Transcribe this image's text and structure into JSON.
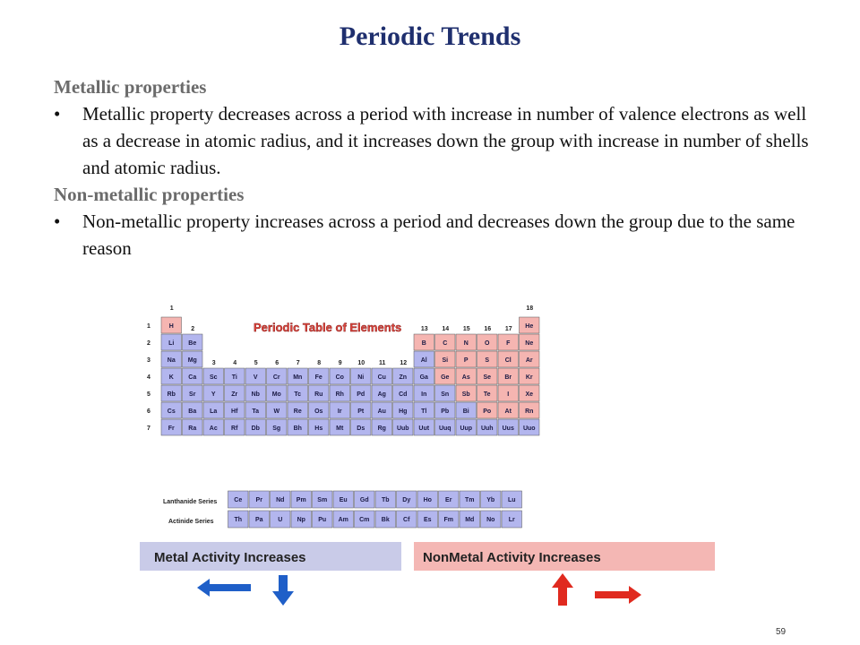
{
  "slide": {
    "title": "Periodic Trends",
    "page_number": "59"
  },
  "sections": [
    {
      "heading": "Metallic properties",
      "bullet": "Metallic property decreases across a period with increase in number of valence electrons as well as a decrease in atomic radius, and it increases down the group with increase in number of shells and atomic radius."
    },
    {
      "heading": "Non-metallic properties",
      "bullet": "Non-metallic property increases across a period and decreases down the group due to the same reason"
    }
  ],
  "table": {
    "title": "Periodic Table of Elements",
    "group_labels": [
      "1",
      "2",
      "3",
      "4",
      "5",
      "6",
      "7",
      "8",
      "9",
      "10",
      "11",
      "12",
      "13",
      "14",
      "15",
      "16",
      "17",
      "18"
    ],
    "period_labels": [
      "1",
      "2",
      "3",
      "4",
      "5",
      "6",
      "7"
    ],
    "lanthanide_label": "Lanthanide Series",
    "actinide_label": "Actinide Series",
    "metal_label": "Metal Activity Increases",
    "nonmetal_label": "NonMetal Activity Increases",
    "colors": {
      "metal": "#b3b6ee",
      "nonmetal": "#f5b5b1",
      "metal_banner": "#c9cbe8",
      "nonmetal_banner": "#f4b7b4",
      "metal_arrow": "#1f5fc8",
      "nonmetal_arrow": "#e02a1f"
    },
    "elements": [
      "H",
      "He",
      "Li",
      "Be",
      "B",
      "C",
      "N",
      "O",
      "F",
      "Ne",
      "Na",
      "Mg",
      "Al",
      "Si",
      "P",
      "S",
      "Cl",
      "Ar",
      "K",
      "Ca",
      "Sc",
      "Ti",
      "V",
      "Cr",
      "Mn",
      "Fe",
      "Co",
      "Ni",
      "Cu",
      "Zn",
      "Ga",
      "Ge",
      "As",
      "Se",
      "Br",
      "Kr",
      "Rb",
      "Sr",
      "Y",
      "Zr",
      "Nb",
      "Mo",
      "Tc",
      "Ru",
      "Rh",
      "Pd",
      "Ag",
      "Cd",
      "In",
      "Sn",
      "Sb",
      "Te",
      "I",
      "Xe",
      "Cs",
      "Ba",
      "La",
      "Hf",
      "Ta",
      "W",
      "Re",
      "Os",
      "Ir",
      "Pt",
      "Au",
      "Hg",
      "Tl",
      "Pb",
      "Bi",
      "Po",
      "At",
      "Rn",
      "Fr",
      "Ra",
      "Ac",
      "Rf",
      "Db",
      "Sg",
      "Bh",
      "Hs",
      "Mt",
      "Ds",
      "Rg",
      "Uub",
      "Uut",
      "Uuq",
      "Uup",
      "Uuh",
      "Uus",
      "Uuo",
      "Ce",
      "Pr",
      "Nd",
      "Pm",
      "Sm",
      "Eu",
      "Gd",
      "Tb",
      "Dy",
      "Ho",
      "Er",
      "Tm",
      "Yb",
      "Lu",
      "Th",
      "Pa",
      "U",
      "Np",
      "Pu",
      "Am",
      "Cm",
      "Bk",
      "Cf",
      "Es",
      "Fm",
      "Md",
      "No",
      "Lr"
    ]
  }
}
